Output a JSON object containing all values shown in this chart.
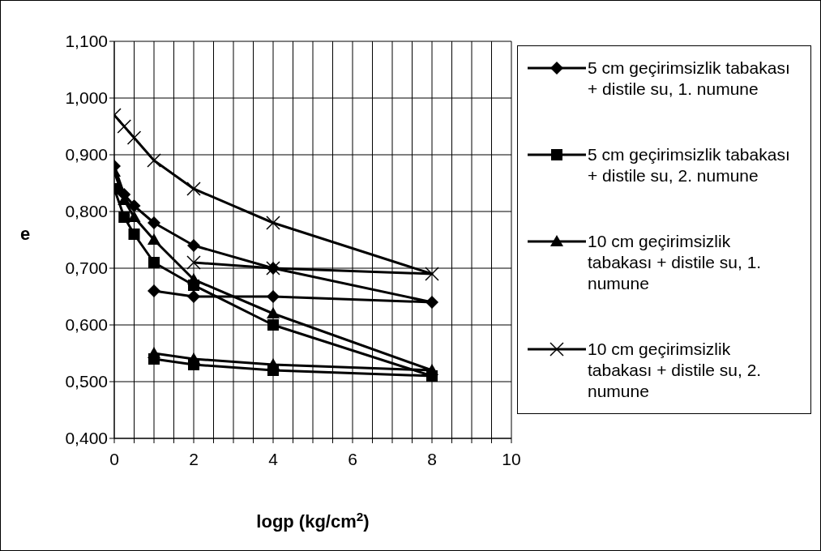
{
  "chart_data": {
    "type": "line",
    "xlabel": "logp (kg/cm$^{2}$)",
    "ylabel": "e",
    "xlim": [
      0,
      10
    ],
    "ylim": [
      0.4,
      1.1
    ],
    "xticks": [
      0,
      {
        "value": 0.5,
        "label": null
      },
      {
        "value": 1,
        "label": null
      },
      {
        "value": 1.5,
        "label": null
      },
      2,
      {
        "value": 2.5,
        "label": null
      },
      {
        "value": 3,
        "label": null
      },
      {
        "value": 3.5,
        "label": null
      },
      4,
      {
        "value": 4.5,
        "label": null
      },
      {
        "value": 5,
        "label": null
      },
      {
        "value": 5.5,
        "label": null
      },
      6,
      {
        "value": 6.5,
        "label": null
      },
      {
        "value": 7,
        "label": null
      },
      {
        "value": 7.5,
        "label": null
      },
      8,
      {
        "value": 8.5,
        "label": null
      },
      {
        "value": 9,
        "label": null
      },
      {
        "value": 9.5,
        "label": null
      },
      10
    ],
    "yticks": [
      {
        "value": 0.4,
        "label": "0,400"
      },
      {
        "value": 0.5,
        "label": "0,500"
      },
      {
        "value": 0.6,
        "label": "0,600"
      },
      {
        "value": 0.7,
        "label": "0,700"
      },
      {
        "value": 0.8,
        "label": "0,800"
      },
      {
        "value": 0.9,
        "label": "0,900"
      },
      {
        "value": 1.0,
        "label": "1,000"
      },
      {
        "value": 1.1,
        "label": "1,100"
      }
    ],
    "grid": true,
    "legend": "right",
    "line_style": "solid",
    "series": [
      {
        "name": "5 cm geçirimsizlik tabakası + distile su, 1. numune",
        "color": "#000000",
        "marker": "diamond",
        "x": [
          0,
          0.25,
          0.5,
          1,
          2,
          4,
          8,
          4,
          2,
          1
        ],
        "values": [
          0.88,
          0.83,
          0.81,
          0.78,
          0.74,
          0.7,
          0.64,
          0.65,
          0.65,
          0.66
        ]
      },
      {
        "name": "5 cm geçirimsizlik tabakası + distile su, 2. numune",
        "color": "#000000",
        "marker": "square",
        "x": [
          0,
          0.25,
          0.5,
          1,
          2,
          4,
          8,
          4,
          2,
          1
        ],
        "values": [
          0.84,
          0.79,
          0.76,
          0.71,
          0.67,
          0.6,
          0.51,
          0.52,
          0.53,
          0.54
        ]
      },
      {
        "name": "10 cm geçirimsizlik tabakası + distile su, 1. numune",
        "color": "#000000",
        "marker": "triangle",
        "x": [
          0,
          0.25,
          0.5,
          1,
          2,
          4,
          8,
          4,
          2,
          1
        ],
        "values": [
          0.87,
          0.82,
          0.79,
          0.75,
          0.68,
          0.62,
          0.52,
          0.53,
          0.54,
          0.55
        ]
      },
      {
        "name": "10 cm geçirimsizlik tabakası + distile su, 2. numune",
        "color": "#000000",
        "marker": "cross",
        "x": [
          0,
          0.25,
          0.5,
          1,
          2,
          4,
          8,
          4,
          2
        ],
        "values": [
          0.97,
          0.95,
          0.93,
          0.89,
          0.84,
          0.78,
          0.69,
          0.7,
          0.71
        ]
      }
    ]
  }
}
